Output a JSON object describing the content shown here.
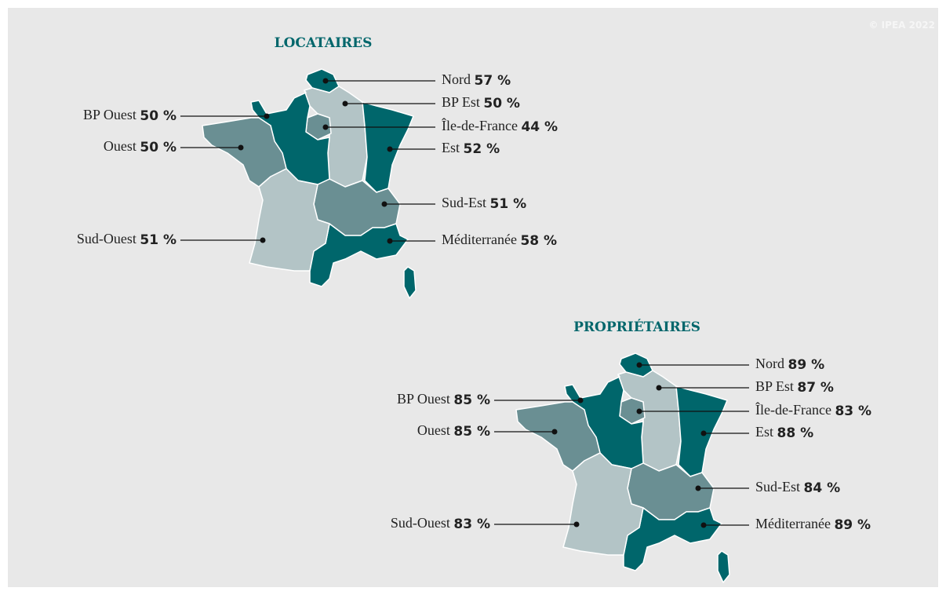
{
  "copyright": "© IPEA 2022",
  "maps": [
    {
      "title": "LOCATAIRES",
      "regions": [
        {
          "name": "Nord",
          "value": "57 %",
          "color": "#00666b"
        },
        {
          "name": "BP Est",
          "value": "50 %",
          "color": "#b3c4c6"
        },
        {
          "name": "Île-de-France",
          "value": "44 %",
          "color": "#6a8f93"
        },
        {
          "name": "Est",
          "value": "52 %",
          "color": "#00666b"
        },
        {
          "name": "Sud-Est",
          "value": "51 %",
          "color": "#6a8f93"
        },
        {
          "name": "Méditerranée",
          "value": "58 %",
          "color": "#00666b"
        },
        {
          "name": "BP Ouest",
          "value": "50 %",
          "color": "#00666b"
        },
        {
          "name": "Ouest",
          "value": "50 %",
          "color": "#6a8f93"
        },
        {
          "name": "Sud-Ouest",
          "value": "51 %",
          "color": "#b3c4c6"
        }
      ]
    },
    {
      "title": "PROPRIÉTAIRES",
      "regions": [
        {
          "name": "Nord",
          "value": "89 %",
          "color": "#00666b"
        },
        {
          "name": "BP Est",
          "value": "87 %",
          "color": "#b3c4c6"
        },
        {
          "name": "Île-de-France",
          "value": "83 %",
          "color": "#6a8f93"
        },
        {
          "name": "Est",
          "value": "88 %",
          "color": "#00666b"
        },
        {
          "name": "Sud-Est",
          "value": "84 %",
          "color": "#6a8f93"
        },
        {
          "name": "Méditerranée",
          "value": "89 %",
          "color": "#00666b"
        },
        {
          "name": "BP Ouest",
          "value": "85 %",
          "color": "#00666b"
        },
        {
          "name": "Ouest",
          "value": "85 %",
          "color": "#6a8f93"
        },
        {
          "name": "Sud-Ouest",
          "value": "83 %",
          "color": "#b3c4c6"
        }
      ]
    }
  ]
}
